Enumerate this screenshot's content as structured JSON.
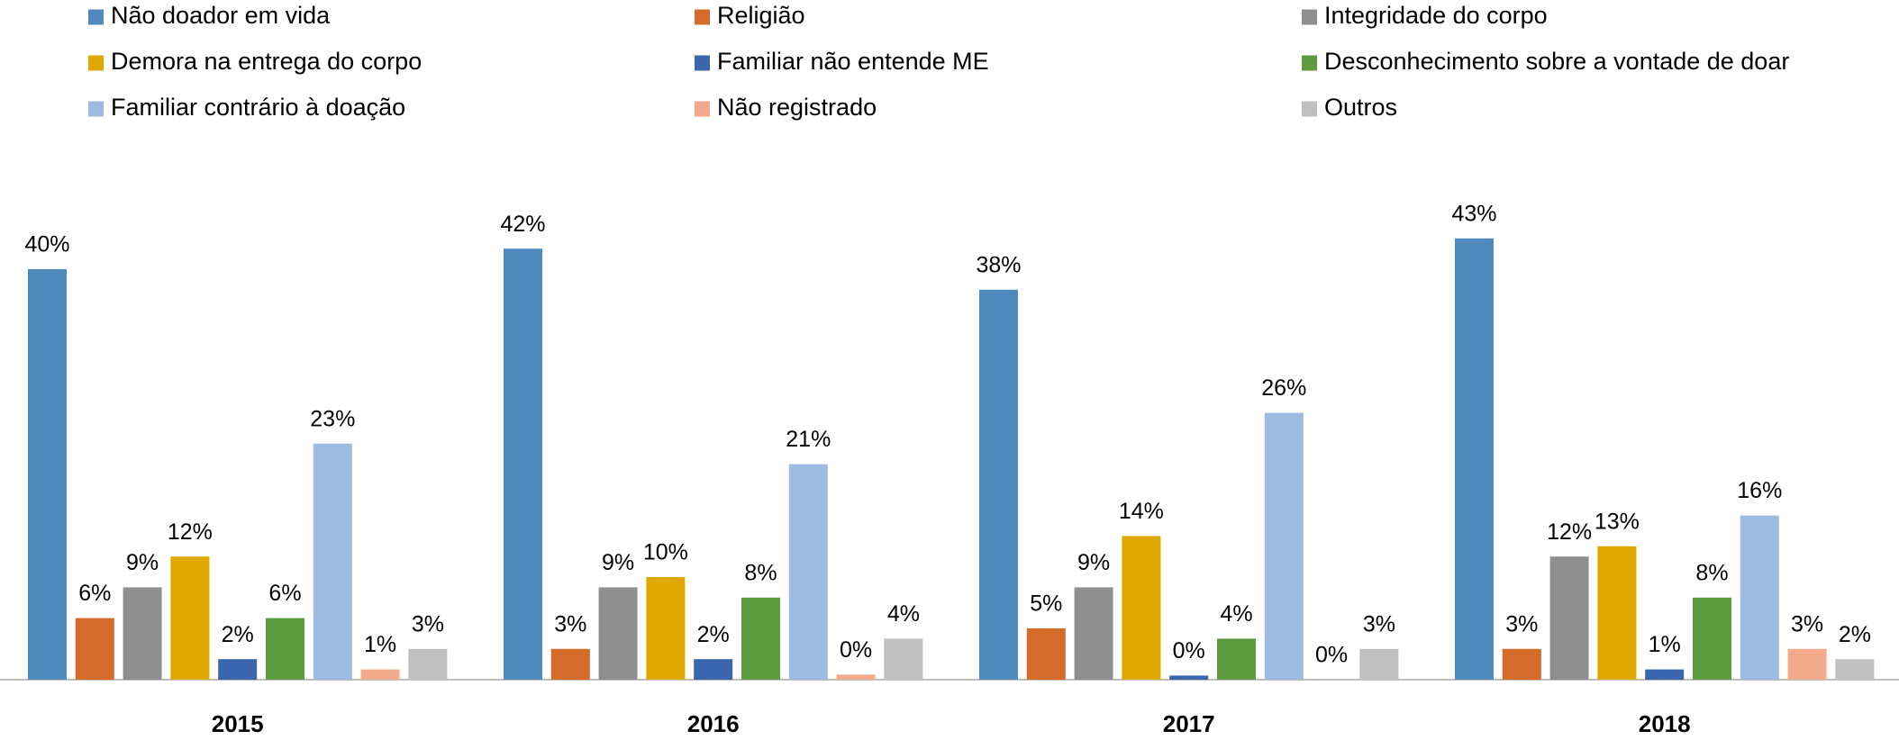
{
  "chart_data": {
    "type": "bar",
    "categories": [
      "2015",
      "2016",
      "2017",
      "2018"
    ],
    "ylim": [
      0,
      50
    ],
    "legend": "top",
    "series": [
      {
        "name": "Não doador em vida",
        "color": "#4f89bd",
        "values": [
          40,
          42,
          38,
          43
        ],
        "value_labels": [
          "40%",
          "42%",
          "38%",
          "43%"
        ]
      },
      {
        "name": "Religião",
        "color": "#d46b2b",
        "values": [
          6,
          3,
          5,
          3
        ],
        "value_labels": [
          "6%",
          "3%",
          "5%",
          "3%"
        ]
      },
      {
        "name": "Integridade do corpo",
        "color": "#8f8f8f",
        "values": [
          9,
          9,
          9,
          12
        ],
        "value_labels": [
          "9%",
          "9%",
          "9%",
          "12%"
        ]
      },
      {
        "name": "Demora na entrega do corpo",
        "color": "#e1a800",
        "values": [
          12,
          10,
          14,
          13
        ],
        "value_labels": [
          "12%",
          "10%",
          "14%",
          "13%"
        ]
      },
      {
        "name": "Familiar não entende ME",
        "color": "#3b65ad",
        "values": [
          2,
          2,
          0.4,
          1
        ],
        "value_labels": [
          "2%",
          "2%",
          "0%",
          "1%"
        ]
      },
      {
        "name": "Desconhecimento sobre a vontade de doar",
        "color": "#5e9a40",
        "values": [
          6,
          8,
          4,
          8
        ],
        "value_labels": [
          "6%",
          "8%",
          "4%",
          "8%"
        ]
      },
      {
        "name": "Familiar contrário à doação",
        "color": "#9dbbe1",
        "values": [
          23,
          21,
          26,
          16
        ],
        "value_labels": [
          "23%",
          "21%",
          "26%",
          "16%"
        ]
      },
      {
        "name": "Não registrado",
        "color": "#f3a98b",
        "values": [
          1,
          0.5,
          0,
          3
        ],
        "value_labels": [
          "1%",
          "0%",
          "0%",
          "3%"
        ]
      },
      {
        "name": "Outros",
        "color": "#bfbfbf",
        "values": [
          3,
          4,
          3,
          2
        ],
        "value_labels": [
          "3%",
          "4%",
          "3%",
          "2%"
        ]
      }
    ]
  }
}
